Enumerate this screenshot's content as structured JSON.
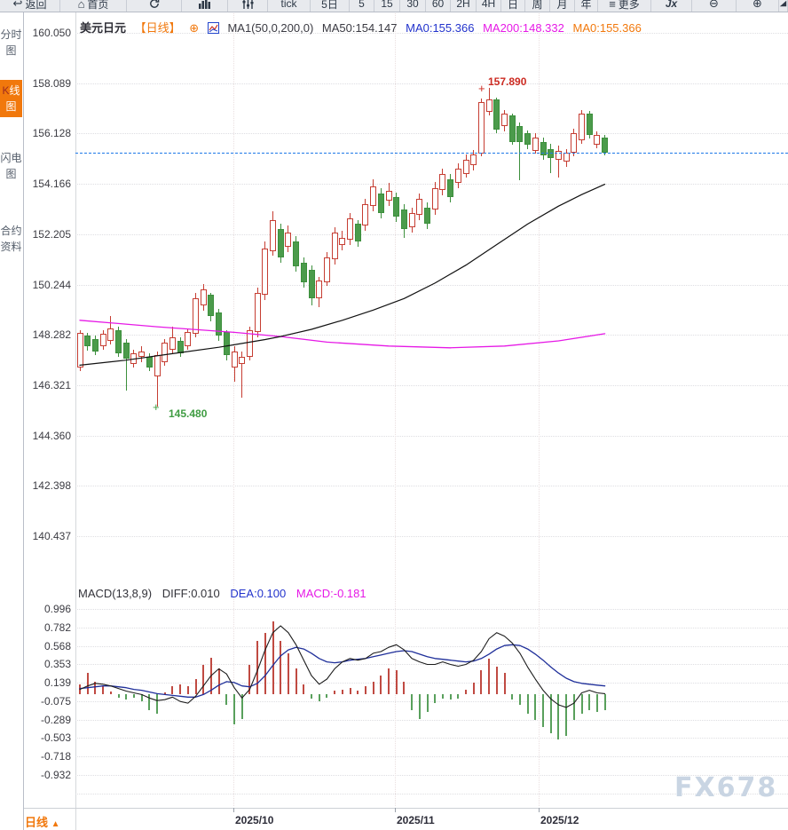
{
  "toolbar": {
    "items": [
      {
        "name": "back",
        "label": "返回",
        "icon": "back"
      },
      {
        "name": "home",
        "label": "首页",
        "icon": "home"
      },
      {
        "name": "refresh",
        "label": "",
        "icon": "refresh"
      },
      {
        "name": "chart-type",
        "label": "",
        "icon": "bars"
      },
      {
        "name": "indicator-settings",
        "label": "",
        "icon": "sliders"
      },
      {
        "name": "tick",
        "label": "tick",
        "icon": ""
      },
      {
        "name": "period-5d",
        "label": "5日",
        "icon": ""
      },
      {
        "name": "period-5",
        "label": "5",
        "icon": ""
      },
      {
        "name": "period-15",
        "label": "15",
        "icon": ""
      },
      {
        "name": "period-30",
        "label": "30",
        "icon": ""
      },
      {
        "name": "period-60",
        "label": "60",
        "icon": ""
      },
      {
        "name": "period-2h",
        "label": "2H",
        "icon": ""
      },
      {
        "name": "period-4h",
        "label": "4H",
        "icon": ""
      },
      {
        "name": "period-day",
        "label": "日",
        "icon": ""
      },
      {
        "name": "period-week",
        "label": "周",
        "icon": ""
      },
      {
        "name": "period-month",
        "label": "月",
        "icon": ""
      },
      {
        "name": "period-year",
        "label": "年",
        "icon": ""
      },
      {
        "name": "more",
        "label": "更多",
        "icon": "menu"
      },
      {
        "name": "fx-indicator",
        "label": "Jx",
        "icon": ""
      },
      {
        "name": "zoom-out",
        "label": "⊖",
        "icon": ""
      },
      {
        "name": "zoom-in",
        "label": "⊕",
        "icon": ""
      },
      {
        "name": "draw",
        "label": "",
        "icon": "draw"
      }
    ]
  },
  "sidebar": {
    "items": [
      {
        "name": "timeshare-chart",
        "label": "分时图",
        "active": false
      },
      {
        "name": "kline-chart",
        "label": "K线图",
        "active": true
      },
      {
        "name": "lightning-chart",
        "label": "闪电图",
        "active": false
      },
      {
        "name": "contract-info",
        "label": "合约资料",
        "active": false
      }
    ]
  },
  "chart_header": {
    "symbol": "美元日元",
    "period": "【日线】",
    "plus": "⊕",
    "ma_settings": "MA1(50,0,200,0)",
    "ma50": "MA50:154.147",
    "ma0_blue": "MA0:155.366",
    "ma200": "MA200:148.332",
    "ma0_orange": "MA0:155.366"
  },
  "macd_header": {
    "title": "MACD(13,8,9)",
    "diff": "DIFF:0.010",
    "dea": "DEA:0.100",
    "macd": "MACD:-0.181"
  },
  "annotations": {
    "high": "157.890",
    "high_marker": "+",
    "low": "145.480",
    "low_marker": "+"
  },
  "bottom_bar": {
    "period_label": "日线",
    "arrow": "▲"
  },
  "watermark": "FX678",
  "colors": {
    "accent_orange": "#f1780c",
    "candle_up": "#c63d32",
    "candle_down": "#4b9b4b",
    "ma50": "#111111",
    "ma200": "#e619e6",
    "dea_blue": "#1f2f9a",
    "current_price_line": "#1e79e8",
    "annotation_red": "#cc2b22",
    "annotation_green": "#3f9c42"
  },
  "chart_data": {
    "type": "candlestick+macd",
    "title": "美元日元 日线 (USD/JPY Daily)",
    "price_axis_ticks": [
      "160.050",
      "158.089",
      "156.128",
      "154.166",
      "152.205",
      "150.244",
      "148.282",
      "146.321",
      "144.360",
      "142.398",
      "140.437"
    ],
    "macd_axis_ticks": [
      "0.996",
      "0.782",
      "0.568",
      "0.353",
      "0.139",
      "-0.075",
      "-0.289",
      "-0.503",
      "-0.718",
      "-0.932"
    ],
    "time_axis_ticks": [
      "2025/10",
      "2025/11",
      "2025/12"
    ],
    "current_price": 155.366,
    "high_annotation": 157.89,
    "low_annotation": 145.48,
    "candles": [
      [
        147.0,
        148.46,
        146.87,
        148.36
      ],
      [
        148.25,
        148.36,
        147.66,
        147.84
      ],
      [
        148.11,
        148.25,
        147.49,
        147.63
      ],
      [
        147.84,
        148.46,
        147.7,
        148.32
      ],
      [
        148.04,
        149.01,
        147.9,
        148.53
      ],
      [
        148.46,
        148.6,
        147.42,
        147.56
      ],
      [
        147.97,
        148.11,
        146.11,
        147.35
      ],
      [
        147.14,
        147.7,
        147.0,
        147.56
      ],
      [
        147.42,
        147.84,
        147.21,
        147.63
      ],
      [
        147.42,
        147.56,
        146.87,
        147.0
      ],
      [
        146.66,
        147.63,
        145.48,
        147.49
      ],
      [
        147.21,
        148.11,
        147.07,
        147.97
      ],
      [
        147.7,
        148.6,
        147.56,
        148.18
      ],
      [
        148.04,
        148.18,
        147.42,
        147.56
      ],
      [
        147.84,
        148.53,
        147.7,
        148.39
      ],
      [
        148.32,
        149.91,
        148.18,
        149.7
      ],
      [
        149.43,
        150.26,
        149.22,
        150.05
      ],
      [
        149.84,
        149.91,
        148.81,
        149.01
      ],
      [
        149.15,
        149.29,
        148.04,
        148.25
      ],
      [
        148.39,
        148.46,
        147.28,
        147.49
      ],
      [
        147.0,
        147.84,
        146.45,
        147.63
      ],
      [
        147.14,
        147.63,
        145.83,
        147.42
      ],
      [
        147.42,
        148.6,
        147.28,
        148.46
      ],
      [
        148.39,
        150.12,
        148.18,
        149.91
      ],
      [
        149.84,
        151.92,
        149.64,
        151.64
      ],
      [
        151.54,
        153.1,
        151.37,
        152.75
      ],
      [
        152.4,
        152.61,
        151.09,
        151.3
      ],
      [
        151.71,
        152.54,
        151.5,
        152.27
      ],
      [
        151.92,
        152.13,
        150.74,
        150.95
      ],
      [
        151.09,
        151.3,
        150.12,
        150.33
      ],
      [
        150.81,
        151.0,
        149.43,
        149.7
      ],
      [
        149.7,
        150.53,
        149.36,
        150.4
      ],
      [
        150.33,
        151.5,
        150.19,
        151.3
      ],
      [
        151.23,
        152.47,
        151.02,
        152.27
      ],
      [
        151.78,
        152.33,
        151.57,
        152.06
      ],
      [
        151.99,
        153.03,
        151.78,
        152.82
      ],
      [
        152.61,
        152.75,
        151.71,
        151.92
      ],
      [
        152.54,
        153.58,
        152.33,
        153.37
      ],
      [
        153.3,
        154.34,
        153.1,
        154.06
      ],
      [
        153.79,
        153.99,
        152.82,
        153.03
      ],
      [
        153.51,
        154.2,
        153.3,
        153.89
      ],
      [
        153.65,
        153.82,
        152.68,
        152.89
      ],
      [
        153.16,
        153.37,
        152.06,
        152.4
      ],
      [
        152.47,
        153.23,
        152.27,
        153.03
      ],
      [
        152.96,
        153.79,
        152.75,
        153.58
      ],
      [
        153.23,
        153.44,
        152.4,
        152.61
      ],
      [
        153.16,
        154.24,
        152.96,
        153.99
      ],
      [
        153.92,
        154.76,
        153.72,
        154.55
      ],
      [
        154.34,
        154.55,
        153.44,
        153.65
      ],
      [
        154.2,
        154.96,
        153.99,
        154.76
      ],
      [
        154.55,
        155.31,
        154.41,
        155.1
      ],
      [
        154.89,
        155.48,
        154.69,
        155.31
      ],
      [
        155.35,
        157.49,
        155.24,
        157.35
      ],
      [
        156.97,
        157.89,
        156.83,
        157.45
      ],
      [
        157.45,
        157.52,
        156.14,
        156.28
      ],
      [
        156.42,
        157.04,
        156.21,
        156.9
      ],
      [
        156.83,
        156.9,
        155.69,
        155.79
      ],
      [
        156.42,
        156.56,
        154.31,
        155.79
      ],
      [
        156.14,
        156.24,
        155.52,
        155.69
      ],
      [
        155.45,
        156.14,
        155.35,
        155.97
      ],
      [
        155.79,
        155.97,
        155.1,
        155.28
      ],
      [
        155.52,
        155.72,
        154.58,
        155.17
      ],
      [
        155.1,
        155.66,
        154.41,
        155.45
      ],
      [
        155.03,
        155.52,
        154.83,
        155.38
      ],
      [
        155.38,
        156.31,
        155.24,
        156.14
      ],
      [
        155.86,
        157.04,
        155.72,
        156.9
      ],
      [
        156.9,
        157.0,
        155.93,
        156.07
      ],
      [
        155.69,
        156.21,
        155.55,
        156.07
      ],
      [
        155.97,
        156.07,
        155.28,
        155.38
      ]
    ],
    "ma50_anchors": [
      [
        0,
        147.1
      ],
      [
        6,
        147.3
      ],
      [
        12,
        147.55
      ],
      [
        18,
        147.8
      ],
      [
        24,
        148.1
      ],
      [
        26,
        148.22
      ],
      [
        30,
        148.5
      ],
      [
        34,
        148.85
      ],
      [
        38,
        149.25
      ],
      [
        42,
        149.7
      ],
      [
        46,
        150.3
      ],
      [
        50,
        151.0
      ],
      [
        54,
        151.8
      ],
      [
        58,
        152.6
      ],
      [
        62,
        153.3
      ],
      [
        65,
        153.75
      ],
      [
        68,
        154.15
      ]
    ],
    "ma200_anchors": [
      [
        0,
        148.85
      ],
      [
        10,
        148.6
      ],
      [
        20,
        148.38
      ],
      [
        26,
        148.22
      ],
      [
        32,
        148.0
      ],
      [
        40,
        147.85
      ],
      [
        48,
        147.78
      ],
      [
        55,
        147.85
      ],
      [
        62,
        148.05
      ],
      [
        68,
        148.33
      ]
    ],
    "macd_hist": [
      0.12,
      0.25,
      0.15,
      0.1,
      0.04,
      -0.04,
      -0.06,
      -0.04,
      -0.08,
      -0.18,
      -0.22,
      0.03,
      0.1,
      0.12,
      0.1,
      0.18,
      0.35,
      0.43,
      0.3,
      -0.12,
      -0.35,
      -0.28,
      0.35,
      0.62,
      0.72,
      0.85,
      0.62,
      0.48,
      0.3,
      0.12,
      -0.05,
      -0.08,
      -0.04,
      0.05,
      0.06,
      0.08,
      0.05,
      0.1,
      0.15,
      0.22,
      0.3,
      0.28,
      0.15,
      -0.18,
      -0.28,
      -0.2,
      -0.1,
      -0.05,
      -0.06,
      -0.05,
      0.06,
      0.14,
      0.28,
      0.42,
      0.32,
      0.25,
      -0.06,
      -0.12,
      -0.22,
      -0.3,
      -0.38,
      -0.45,
      -0.52,
      -0.48,
      -0.3,
      -0.22,
      -0.18,
      -0.2,
      -0.181
    ],
    "macd_diff": [
      0.06,
      0.1,
      0.13,
      0.12,
      0.1,
      0.07,
      0.04,
      0.02,
      0.0,
      -0.04,
      -0.07,
      -0.06,
      -0.03,
      -0.08,
      -0.1,
      -0.02,
      0.1,
      0.22,
      0.3,
      0.24,
      0.08,
      -0.04,
      0.06,
      0.28,
      0.52,
      0.72,
      0.8,
      0.72,
      0.58,
      0.4,
      0.22,
      0.12,
      0.18,
      0.3,
      0.38,
      0.42,
      0.4,
      0.42,
      0.48,
      0.5,
      0.55,
      0.58,
      0.52,
      0.42,
      0.38,
      0.35,
      0.35,
      0.38,
      0.35,
      0.33,
      0.35,
      0.4,
      0.5,
      0.65,
      0.72,
      0.68,
      0.6,
      0.48,
      0.32,
      0.18,
      0.05,
      -0.05,
      -0.12,
      -0.15,
      -0.1,
      0.02,
      0.05,
      0.02,
      0.01
    ],
    "macd_dea": [
      0.07,
      0.08,
      0.09,
      0.1,
      0.1,
      0.09,
      0.08,
      0.06,
      0.05,
      0.03,
      0.01,
      0.0,
      -0.01,
      -0.02,
      -0.03,
      -0.03,
      0.0,
      0.05,
      0.11,
      0.15,
      0.14,
      0.1,
      0.09,
      0.13,
      0.22,
      0.34,
      0.45,
      0.52,
      0.55,
      0.53,
      0.48,
      0.42,
      0.38,
      0.37,
      0.38,
      0.4,
      0.41,
      0.42,
      0.44,
      0.46,
      0.48,
      0.5,
      0.51,
      0.5,
      0.47,
      0.44,
      0.42,
      0.41,
      0.4,
      0.39,
      0.38,
      0.39,
      0.42,
      0.47,
      0.53,
      0.57,
      0.58,
      0.57,
      0.53,
      0.47,
      0.4,
      0.32,
      0.25,
      0.19,
      0.15,
      0.13,
      0.12,
      0.11,
      0.1
    ]
  }
}
